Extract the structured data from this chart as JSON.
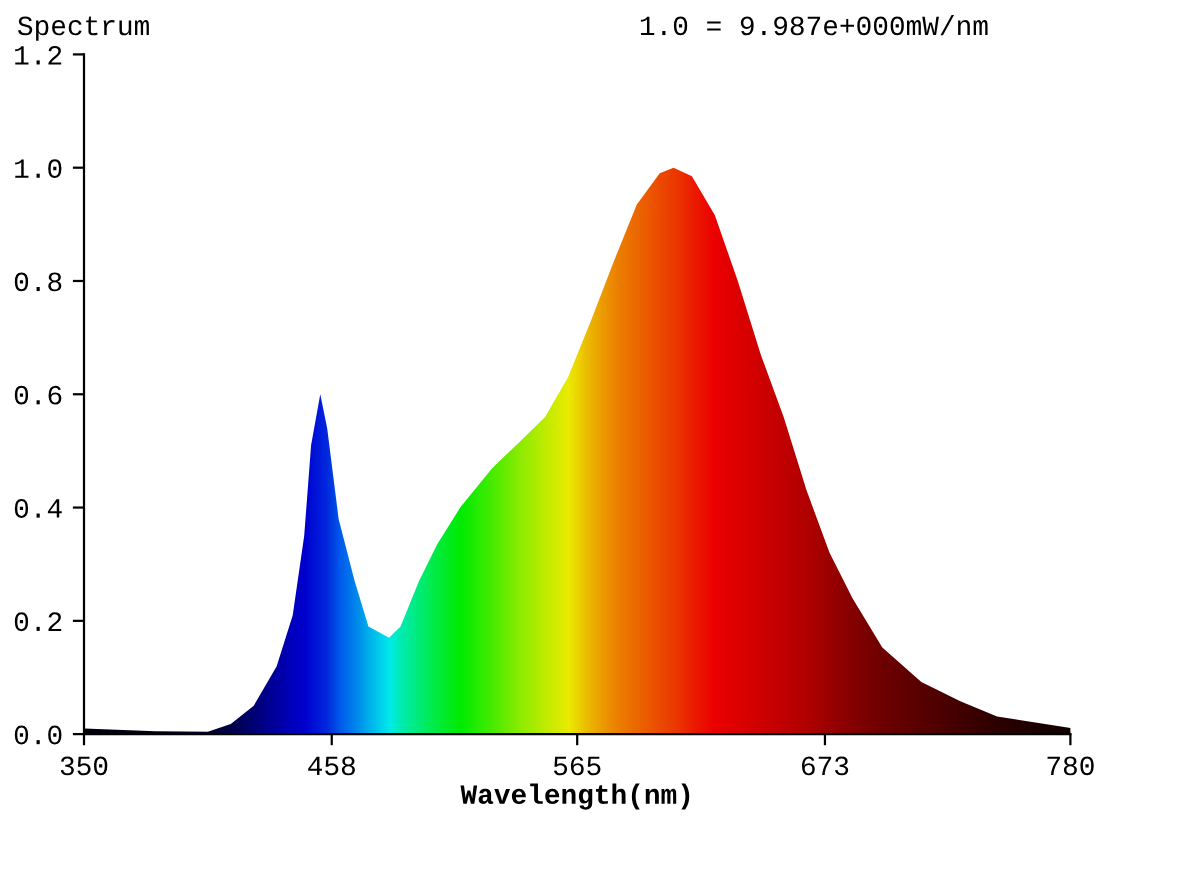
{
  "chart_data": {
    "type": "area",
    "ylabel": "Spectrum",
    "xlabel": "Wavelength(nm)",
    "annotations": [
      "1.0 = 9.987e+000mW/nm"
    ],
    "x": [
      350,
      381,
      404,
      414,
      424,
      434,
      441,
      446,
      449,
      453,
      456,
      461,
      468,
      474,
      483,
      488,
      496,
      504,
      514,
      528,
      541,
      551,
      561,
      571,
      581,
      591,
      601,
      607,
      615,
      625,
      635,
      645,
      655,
      665,
      675,
      685,
      698,
      715,
      732,
      748,
      780
    ],
    "series": [
      {
        "values": [
          0.01,
          0.005,
          0.004,
          0.018,
          0.05,
          0.12,
          0.21,
          0.35,
          0.51,
          0.6,
          0.54,
          0.38,
          0.27,
          0.19,
          0.17,
          0.19,
          0.27,
          0.335,
          0.4,
          0.47,
          0.52,
          0.56,
          0.63,
          0.73,
          0.835,
          0.935,
          0.99,
          1.0,
          0.985,
          0.916,
          0.8,
          0.67,
          0.56,
          0.43,
          0.32,
          0.24,
          0.153,
          0.092,
          0.058,
          0.031,
          0.011
        ],
        "colors": [
          "#000010",
          "#000018",
          "#000030",
          "#000050",
          "#000080",
          "#0000b0",
          "#0000d0",
          "#0000e0",
          "#0010e8",
          "#0020f0",
          "#0030f0",
          "#0060ff",
          "#0090ff",
          "#00c0ff",
          "#00ffff",
          "#00ffc0",
          "#00ff80",
          "#00ff40",
          "#00ff00",
          "#50ff00",
          "#a0ff00",
          "#d0ff00",
          "#ffff00",
          "#ffc000",
          "#ff9000",
          "#ff7000",
          "#ff5000",
          "#ff4000",
          "#ff2000",
          "#ff0000",
          "#f00000",
          "#e00000",
          "#d00000",
          "#c00000",
          "#a80000",
          "#900000",
          "#780000",
          "#600000",
          "#480000",
          "#300000",
          "#100000"
        ]
      }
    ],
    "xlim": [
      350,
      780
    ],
    "xticks": [
      350,
      458,
      565,
      673,
      780
    ],
    "ylim": [
      0,
      1.2
    ],
    "yticks": [
      {
        "value": 0,
        "label": "0.0"
      },
      {
        "value": 0.2,
        "label": "0.2"
      },
      {
        "value": 0.4,
        "label": "0.4"
      },
      {
        "value": 0.6,
        "label": "0.6"
      },
      {
        "value": 0.8,
        "label": "0.8"
      },
      {
        "value": 1.0,
        "label": "1.0"
      },
      {
        "value": 1.2,
        "label": "1.2"
      }
    ],
    "grid": false,
    "legend": false
  }
}
